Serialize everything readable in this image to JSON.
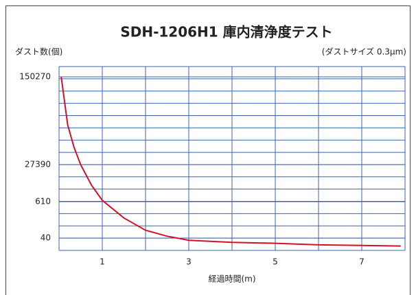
{
  "chart_data": {
    "type": "line",
    "title": "SDH-1206H1 庫内清浄度テスト",
    "y_label": "ダスト数(個)",
    "annotation": "(ダストサイズ 0.3μm)",
    "x_label": "経過時間(m)",
    "xlim": [
      0,
      8
    ],
    "xticks": [
      1,
      3,
      5,
      7
    ],
    "yticks": [
      40,
      610,
      27390,
      150270
    ],
    "grid": true,
    "series": [
      {
        "color": "#d3102a",
        "x": [
          0.05,
          0.2,
          0.35,
          0.5,
          0.75,
          1.0,
          1.5,
          2.0,
          2.5,
          3.0,
          4.0,
          5.0,
          6.0,
          7.0,
          7.9
        ],
        "values": [
          150270,
          59200,
          38100,
          27390,
          3310,
          700,
          180,
          72,
          46,
          34,
          29,
          27,
          24,
          23,
          22
        ]
      }
    ]
  }
}
